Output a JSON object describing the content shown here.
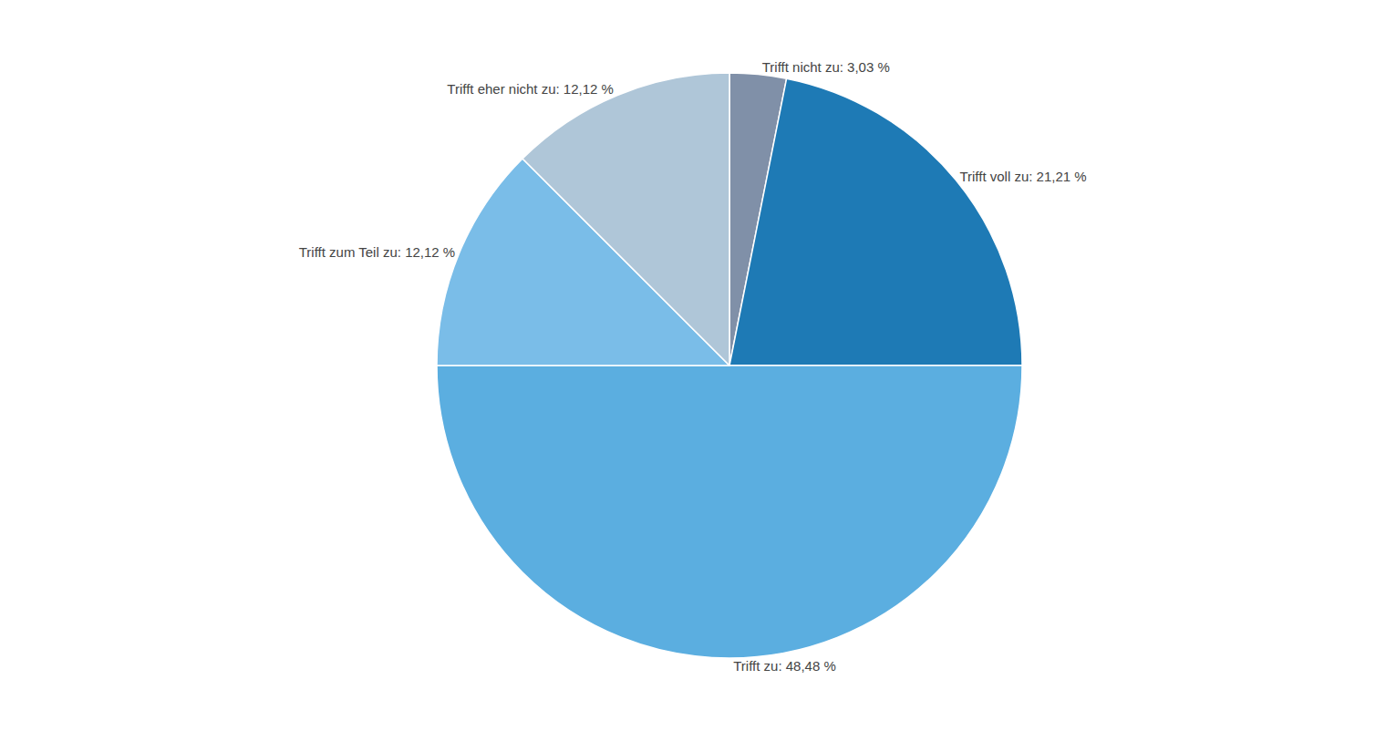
{
  "chart_data": {
    "type": "pie",
    "categories": [
      "Trifft nicht zu: 3,03 %",
      "Trifft voll zu: 21,21 %",
      "Trifft zu: 48,48 %",
      "Trifft zum Teil zu: 12,12 %",
      "Trifft eher nicht zu: 12,12 %"
    ],
    "values": [
      3.03,
      21.21,
      48.48,
      12.12,
      12.12
    ],
    "colors": [
      "#8090a8",
      "#1e7ab5",
      "#5baee0",
      "#7abde8",
      "#afc6d8"
    ]
  }
}
